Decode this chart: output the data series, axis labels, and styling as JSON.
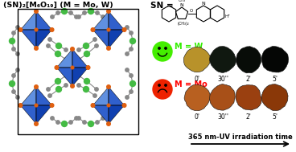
{
  "title_text": "(SN)₂[M₆O₁₉] (M = Mo, W)",
  "sn_label": "SN =",
  "m_w_label": "M = W",
  "m_mo_label": "M = Mo",
  "time_labels_w": [
    "0'",
    "30''",
    "2'",
    "5'"
  ],
  "time_labels_mo": [
    "0'",
    "30''",
    "2'",
    "5'"
  ],
  "arrow_label": "365 nm-UV irradiation time",
  "bg_color": "#ffffff",
  "title_color": "#000000",
  "w_label_color": "#33ee00",
  "mo_label_color": "#ff0000",
  "w_colors": [
    "#b8922a",
    "#101810",
    "#080c08",
    "#050605"
  ],
  "mo_colors": [
    "#b86020",
    "#a85018",
    "#9a4010",
    "#8a3808"
  ],
  "blue_dark": "#1040b0",
  "blue_mid": "#3060cc",
  "blue_light": "#6090e0",
  "orange_node": "#e06010",
  "gray_chain": "#888888",
  "green_node": "#44bb44",
  "smiley_color": "#44ee00",
  "sad_color": "#ee2200",
  "cell_edge_color": "#000000",
  "blob_edge_color": "#111111"
}
